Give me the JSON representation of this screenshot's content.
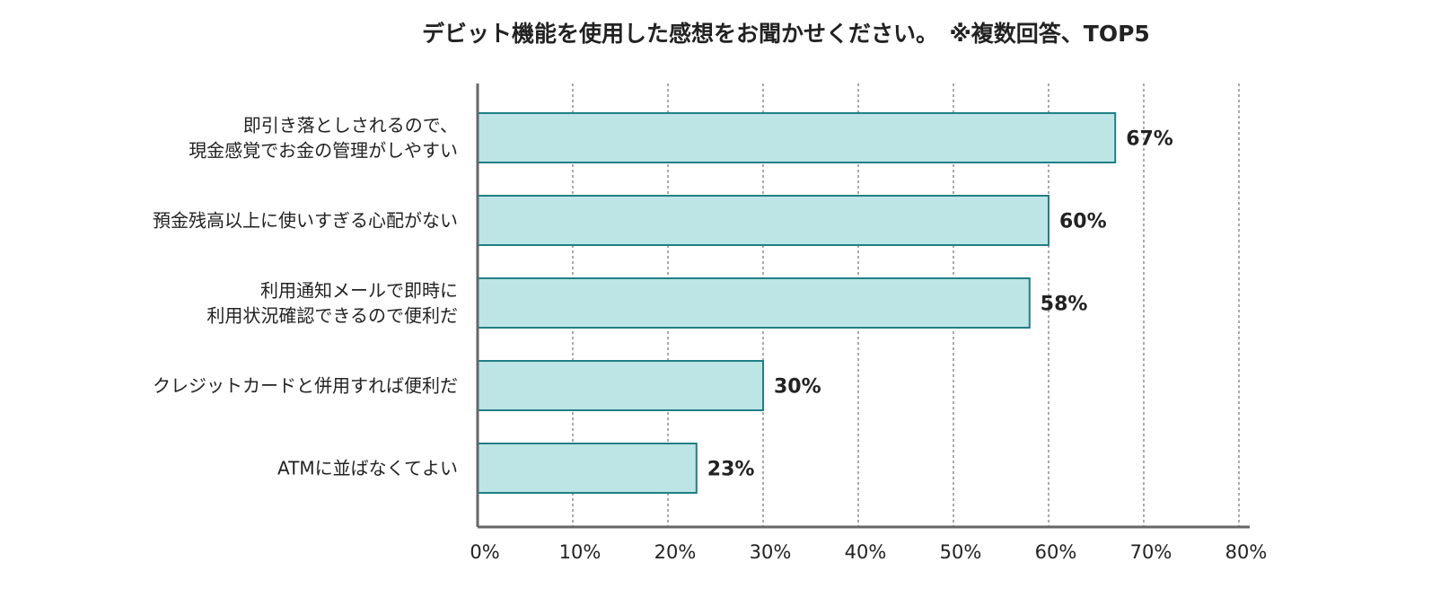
{
  "chart_data": {
    "type": "bar",
    "orientation": "horizontal",
    "title": "デビット機能を使用した感想をお聞かせください。　※複数回答、TOP5",
    "categories": [
      [
        "即引き落としされるので、",
        "現金感覚でお金の管理がしやすい"
      ],
      [
        "預金残高以上に使いすぎる心配がない"
      ],
      [
        "利用通知メールで即時に",
        "利用状況確認できるので便利だ"
      ],
      [
        "クレジットカードと併用すれば便利だ"
      ],
      [
        "ATMに並ばなくてよい"
      ]
    ],
    "values": [
      67,
      60,
      58,
      30,
      23
    ],
    "value_labels": [
      "67%",
      "60%",
      "58%",
      "30%",
      "23%"
    ],
    "xlim": [
      0,
      80
    ],
    "x_ticks": [
      0,
      10,
      20,
      30,
      40,
      50,
      60,
      70,
      80
    ],
    "x_tick_labels": [
      "0%",
      "10%",
      "20%",
      "30%",
      "40%",
      "50%",
      "60%",
      "70%",
      "80%"
    ],
    "grid": true,
    "colors": {
      "bar_fill": "#bde5e5",
      "bar_stroke": "#1f7f86",
      "axis": "#666666",
      "grid": "#555555"
    }
  }
}
